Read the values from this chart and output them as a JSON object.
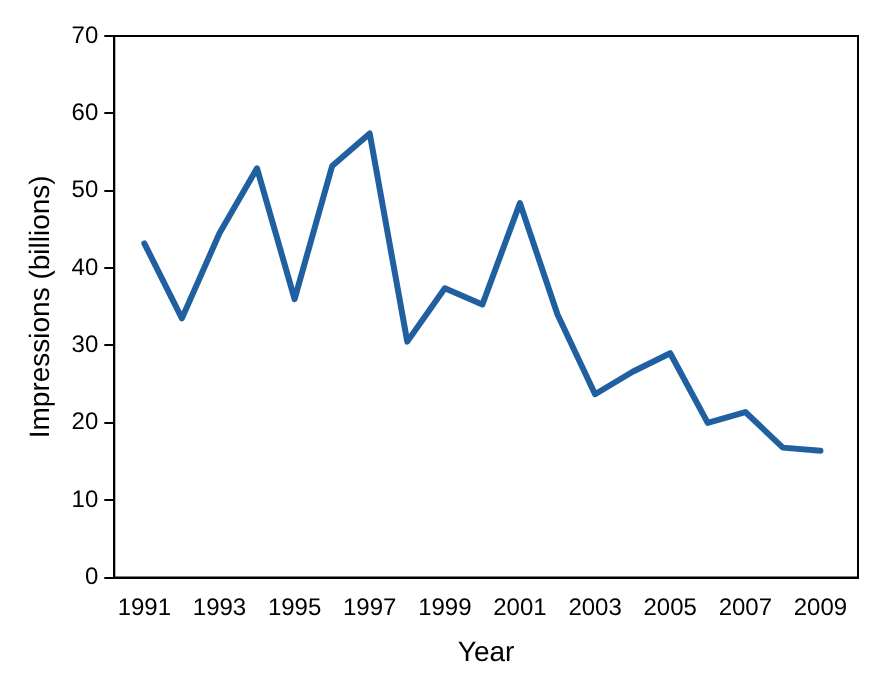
{
  "chart_data": {
    "type": "line",
    "xlabel": "Year",
    "ylabel": "Impressions (billions)",
    "x": [
      1991,
      1992,
      1993,
      1994,
      1995,
      1996,
      1997,
      1998,
      1999,
      2000,
      2001,
      2002,
      2003,
      2004,
      2005,
      2006,
      2007,
      2008,
      2009
    ],
    "series": [
      {
        "color": "#2060a0",
        "values": [
          43.2,
          33.5,
          44.5,
          52.9,
          36,
          53.2,
          57.4,
          30.5,
          37.4,
          35.3,
          48.4,
          34,
          23.7,
          26.6,
          29,
          20,
          21.4,
          16.8,
          16.4
        ]
      }
    ],
    "xlim": [
      1990.2,
      2010
    ],
    "xticks": [
      1991,
      1993,
      1995,
      1997,
      1999,
      2001,
      2003,
      2005,
      2007,
      2009
    ],
    "ylim": [
      0,
      70
    ],
    "yticks": [
      0,
      10,
      20,
      30,
      40,
      50,
      60,
      70
    ],
    "grid": false,
    "legend": false,
    "marker": "none",
    "line_style": "solid"
  }
}
